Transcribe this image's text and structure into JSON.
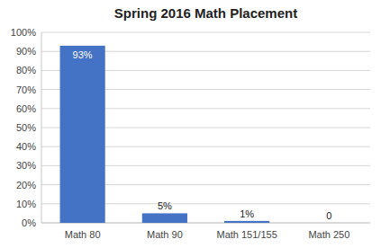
{
  "chart_data": {
    "type": "bar",
    "title": "Spring 2016 Math Placement",
    "categories": [
      "Math 80",
      "Math 90",
      "Math 151/155",
      "Math 250"
    ],
    "values": [
      0.93,
      0.05,
      0.01,
      0.0
    ],
    "value_labels": [
      "93%",
      "5%",
      "1%",
      "0"
    ],
    "data_labels": true,
    "color": "#4472C4",
    "ylim": [
      0,
      1.0
    ],
    "yticks": [
      {
        "value": 0.0,
        "label": "0%"
      },
      {
        "value": 0.1,
        "label": "10%"
      },
      {
        "value": 0.2,
        "label": "20%"
      },
      {
        "value": 0.3,
        "label": "30%"
      },
      {
        "value": 0.4,
        "label": "40%"
      },
      {
        "value": 0.5,
        "label": "50%"
      },
      {
        "value": 0.6,
        "label": "60%"
      },
      {
        "value": 0.7,
        "label": "70%"
      },
      {
        "value": 0.8,
        "label": "80%"
      },
      {
        "value": 0.9,
        "label": "90%"
      },
      {
        "value": 1.0,
        "label": "100%"
      }
    ],
    "grid": true
  }
}
